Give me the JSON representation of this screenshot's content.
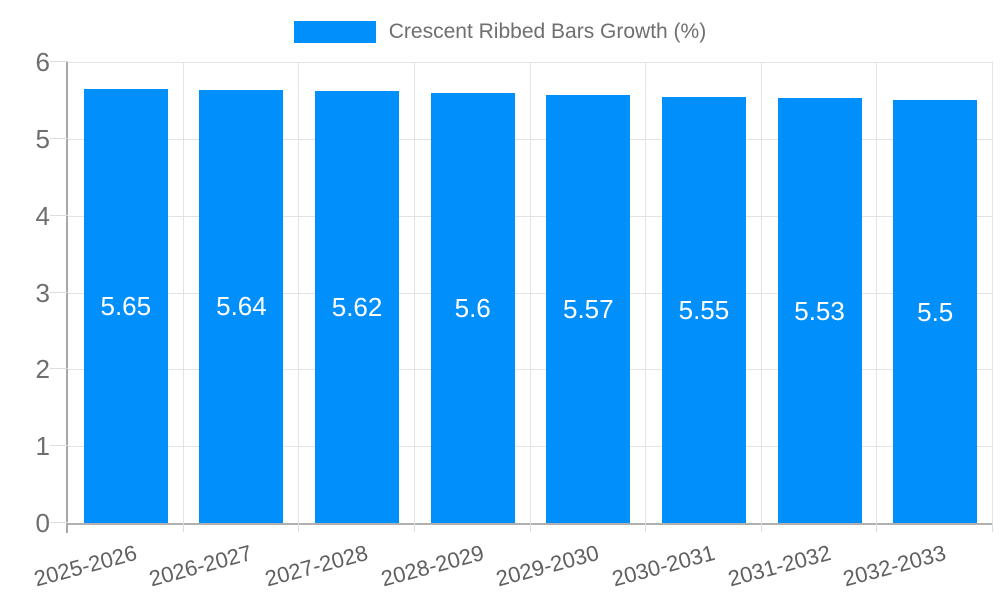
{
  "chart_data": {
    "type": "bar",
    "title": "Crescent Ribbed Bars Growth (%)",
    "categories": [
      "2025-2026",
      "2026-2027",
      "2027-2028",
      "2028-2029",
      "2029-2030",
      "2030-2031",
      "2031-2032",
      "2032-2033"
    ],
    "series": [
      {
        "name": "Crescent Ribbed Bars Growth (%)",
        "values": [
          5.65,
          5.64,
          5.62,
          5.6,
          5.57,
          5.55,
          5.53,
          5.5
        ],
        "value_labels": [
          "5.65",
          "5.64",
          "5.62",
          "5.6",
          "5.57",
          "5.55",
          "5.53",
          "5.5"
        ]
      }
    ],
    "xlabel": "",
    "ylabel": "",
    "ylim": [
      0,
      6
    ],
    "y_ticks": [
      0,
      1,
      2,
      3,
      4,
      5,
      6
    ],
    "grid": true,
    "legend_position": "top",
    "colors": {
      "bar": "#008ffb",
      "grid": "#e3e3e3",
      "baseline": "#b0b0b0",
      "y_axis_line": "#a8a8a8",
      "tick": "#dcdcdc",
      "y_label": "#6e6e6e",
      "x_label": "#606060",
      "legend_text": "#6f6f6f",
      "value_label": "#ffffff"
    }
  }
}
